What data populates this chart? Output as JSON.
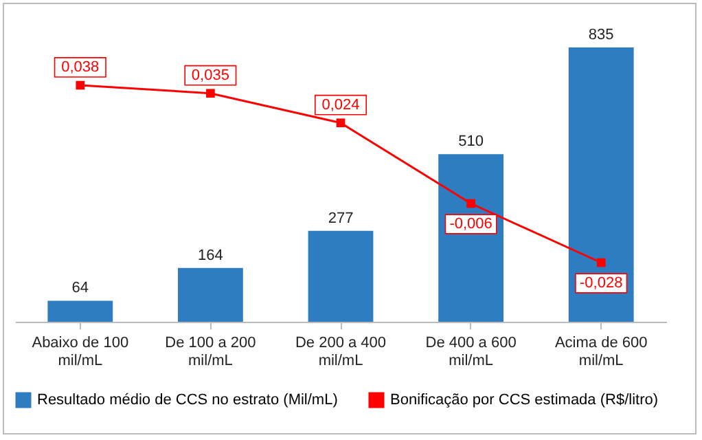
{
  "chart_data": {
    "type": "bar",
    "categories": [
      "Abaixo de 100 mil/mL",
      "De 100 a 200 mil/mL",
      "De 200 a 400 mil/mL",
      "De 400 a 600 mil/mL",
      "Acima de 600 mil/mL"
    ],
    "series": [
      {
        "name": "Resultado médio de CCS no estrato (Mil/mL)",
        "color": "#2e7dc0",
        "values": [
          64,
          164,
          277,
          510,
          835
        ]
      },
      {
        "name": "Bonificação por CCS estimada (R$/litro)",
        "type": "line",
        "axis": "y2",
        "color": "#ff0000",
        "marker": "square",
        "values": [
          0.038,
          0.035,
          0.024,
          -0.006,
          -0.028
        ],
        "value_labels": [
          "0,038",
          "0,035",
          "0,024",
          "-0,006",
          "-0,028"
        ]
      }
    ],
    "tick_labels": "x",
    "data_labels": true,
    "legend": "bottom",
    "grid": false
  }
}
